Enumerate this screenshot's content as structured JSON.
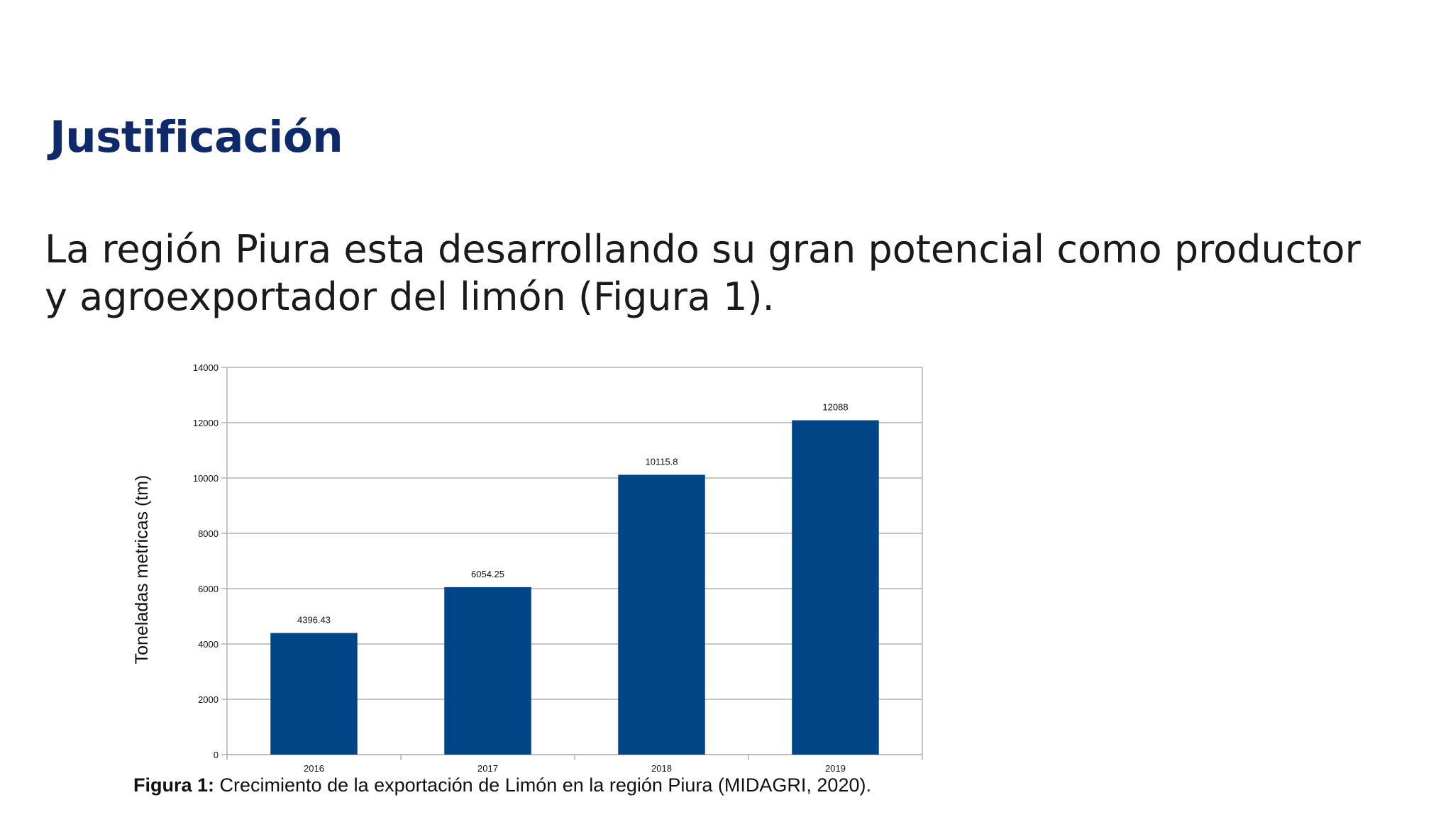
{
  "slide": {
    "title": "Justificación",
    "body": "La región Piura esta desarrollando su gran potencial como productor y agroexportador del limón (Figura 1).",
    "caption_label": "Figura 1:",
    "caption_text": " Crecimiento de la exportación de Limón en la región Piura (MIDAGRI, 2020)."
  },
  "colors": {
    "title": "#0f2a6b",
    "bar": "#004586",
    "grid": "#b3b3b3"
  },
  "chart_data": {
    "type": "bar",
    "categories": [
      "2016",
      "2017",
      "2018",
      "2019"
    ],
    "values": [
      4396.43,
      6054.25,
      10115.8,
      12088
    ],
    "value_labels": [
      "4396.43",
      "6054.25",
      "10115.8",
      "12088"
    ],
    "ylabel": "Toneladas metricas (tm)",
    "xlabel": "",
    "ylim": [
      0,
      14000
    ],
    "yticks": [
      0,
      2000,
      4000,
      6000,
      8000,
      10000,
      12000,
      14000
    ],
    "grid": true,
    "legend": "none"
  }
}
